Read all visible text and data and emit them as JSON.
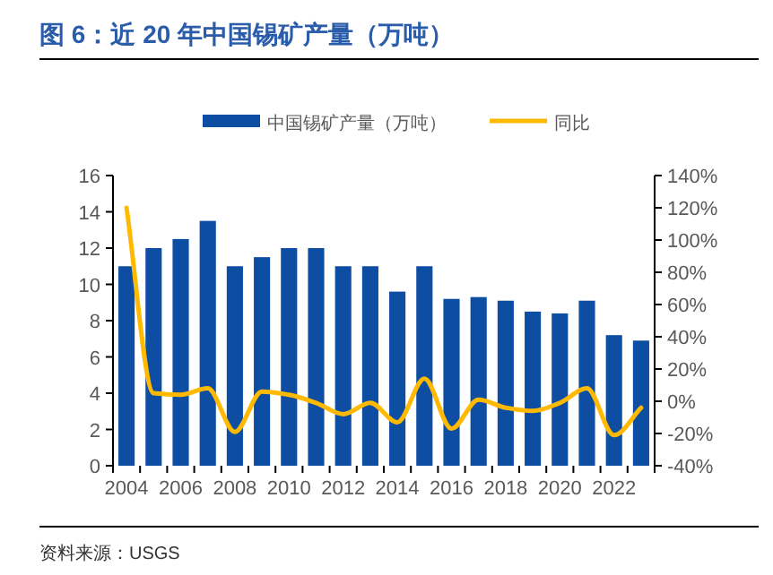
{
  "chart_data": {
    "type": "bar",
    "title": "图 6：近 20 年中国锡矿产量（万吨）",
    "categories": [
      "2004",
      null,
      "2006",
      null,
      "2008",
      null,
      "2010",
      null,
      "2012",
      null,
      "2014",
      null,
      "2016",
      null,
      "2018",
      null,
      "2020",
      null,
      "2022",
      null
    ],
    "series": [
      {
        "name": "中国锡矿产量（万吨）",
        "color": "#0d4ea3",
        "values": [
          11,
          12,
          12.5,
          13.5,
          11,
          11.5,
          12,
          12,
          11,
          11,
          9.6,
          11,
          9.2,
          9.3,
          9.1,
          8.5,
          8.4,
          9.1,
          7.2,
          6.9
        ]
      },
      {
        "name": "同比",
        "type": "line",
        "axis": "y2",
        "color": "#ffb900",
        "values": [
          120,
          5,
          4,
          8,
          -19,
          6,
          4,
          -1,
          -8,
          -1,
          -13,
          14,
          -17,
          1,
          -4,
          -6,
          -1,
          8,
          -21,
          -4
        ]
      }
    ],
    "ylim": [
      0,
      16
    ],
    "yticks": [
      0,
      2,
      4,
      6,
      8,
      10,
      12,
      14,
      16
    ],
    "y2lim": [
      -40,
      140
    ],
    "y2ticks": [
      {
        "value": -40,
        "label": "-40%"
      },
      {
        "value": -20,
        "label": "-20%"
      },
      {
        "value": 0,
        "label": "0%"
      },
      {
        "value": 20,
        "label": "20%"
      },
      {
        "value": 40,
        "label": "40%"
      },
      {
        "value": 60,
        "label": "60%"
      },
      {
        "value": 80,
        "label": "80%"
      },
      {
        "value": 100,
        "label": "100%"
      },
      {
        "value": 120,
        "label": "120%"
      },
      {
        "value": 140,
        "label": "140%"
      }
    ],
    "grid": false,
    "legend": "top",
    "marker": "none",
    "annotations": [
      "资料来源：USGS"
    ]
  }
}
